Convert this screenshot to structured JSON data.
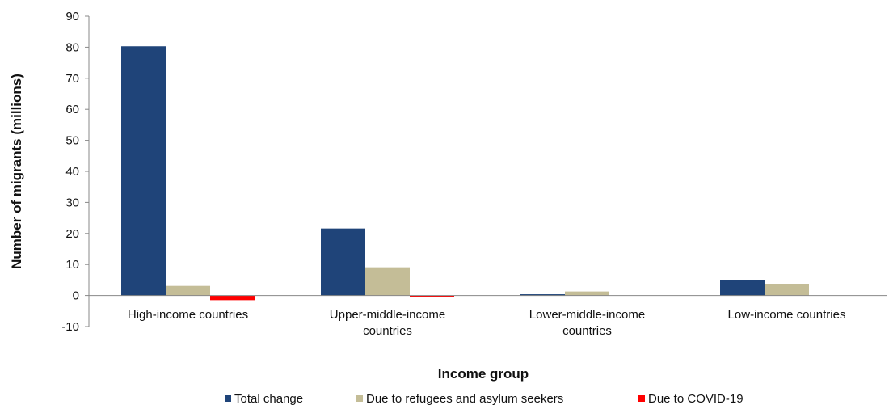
{
  "chart_data": {
    "type": "bar",
    "title": "",
    "xlabel": "Income group",
    "ylabel": "Number of migrants (millions)",
    "ylim": [
      -10,
      90
    ],
    "yticks": [
      -10,
      0,
      10,
      20,
      30,
      40,
      50,
      60,
      70,
      80,
      90
    ],
    "grid": false,
    "legend_position": "bottom",
    "categories": [
      [
        "High-income countries"
      ],
      [
        "Upper-middle-income",
        "countries"
      ],
      [
        "Lower-middle-income",
        "countries"
      ],
      [
        "Low-income countries"
      ]
    ],
    "series": [
      {
        "name": "Total change",
        "color": "#1f4479",
        "values": [
          80.3,
          21.6,
          0.4,
          4.9
        ]
      },
      {
        "name": "Due to refugees and asylum seekers",
        "color": "#c4bd97",
        "values": [
          3.1,
          9.1,
          1.3,
          3.8
        ]
      },
      {
        "name": "Due to COVID-19",
        "color": "#ff0000",
        "values": [
          -1.5,
          -0.5,
          0,
          0
        ]
      }
    ]
  }
}
